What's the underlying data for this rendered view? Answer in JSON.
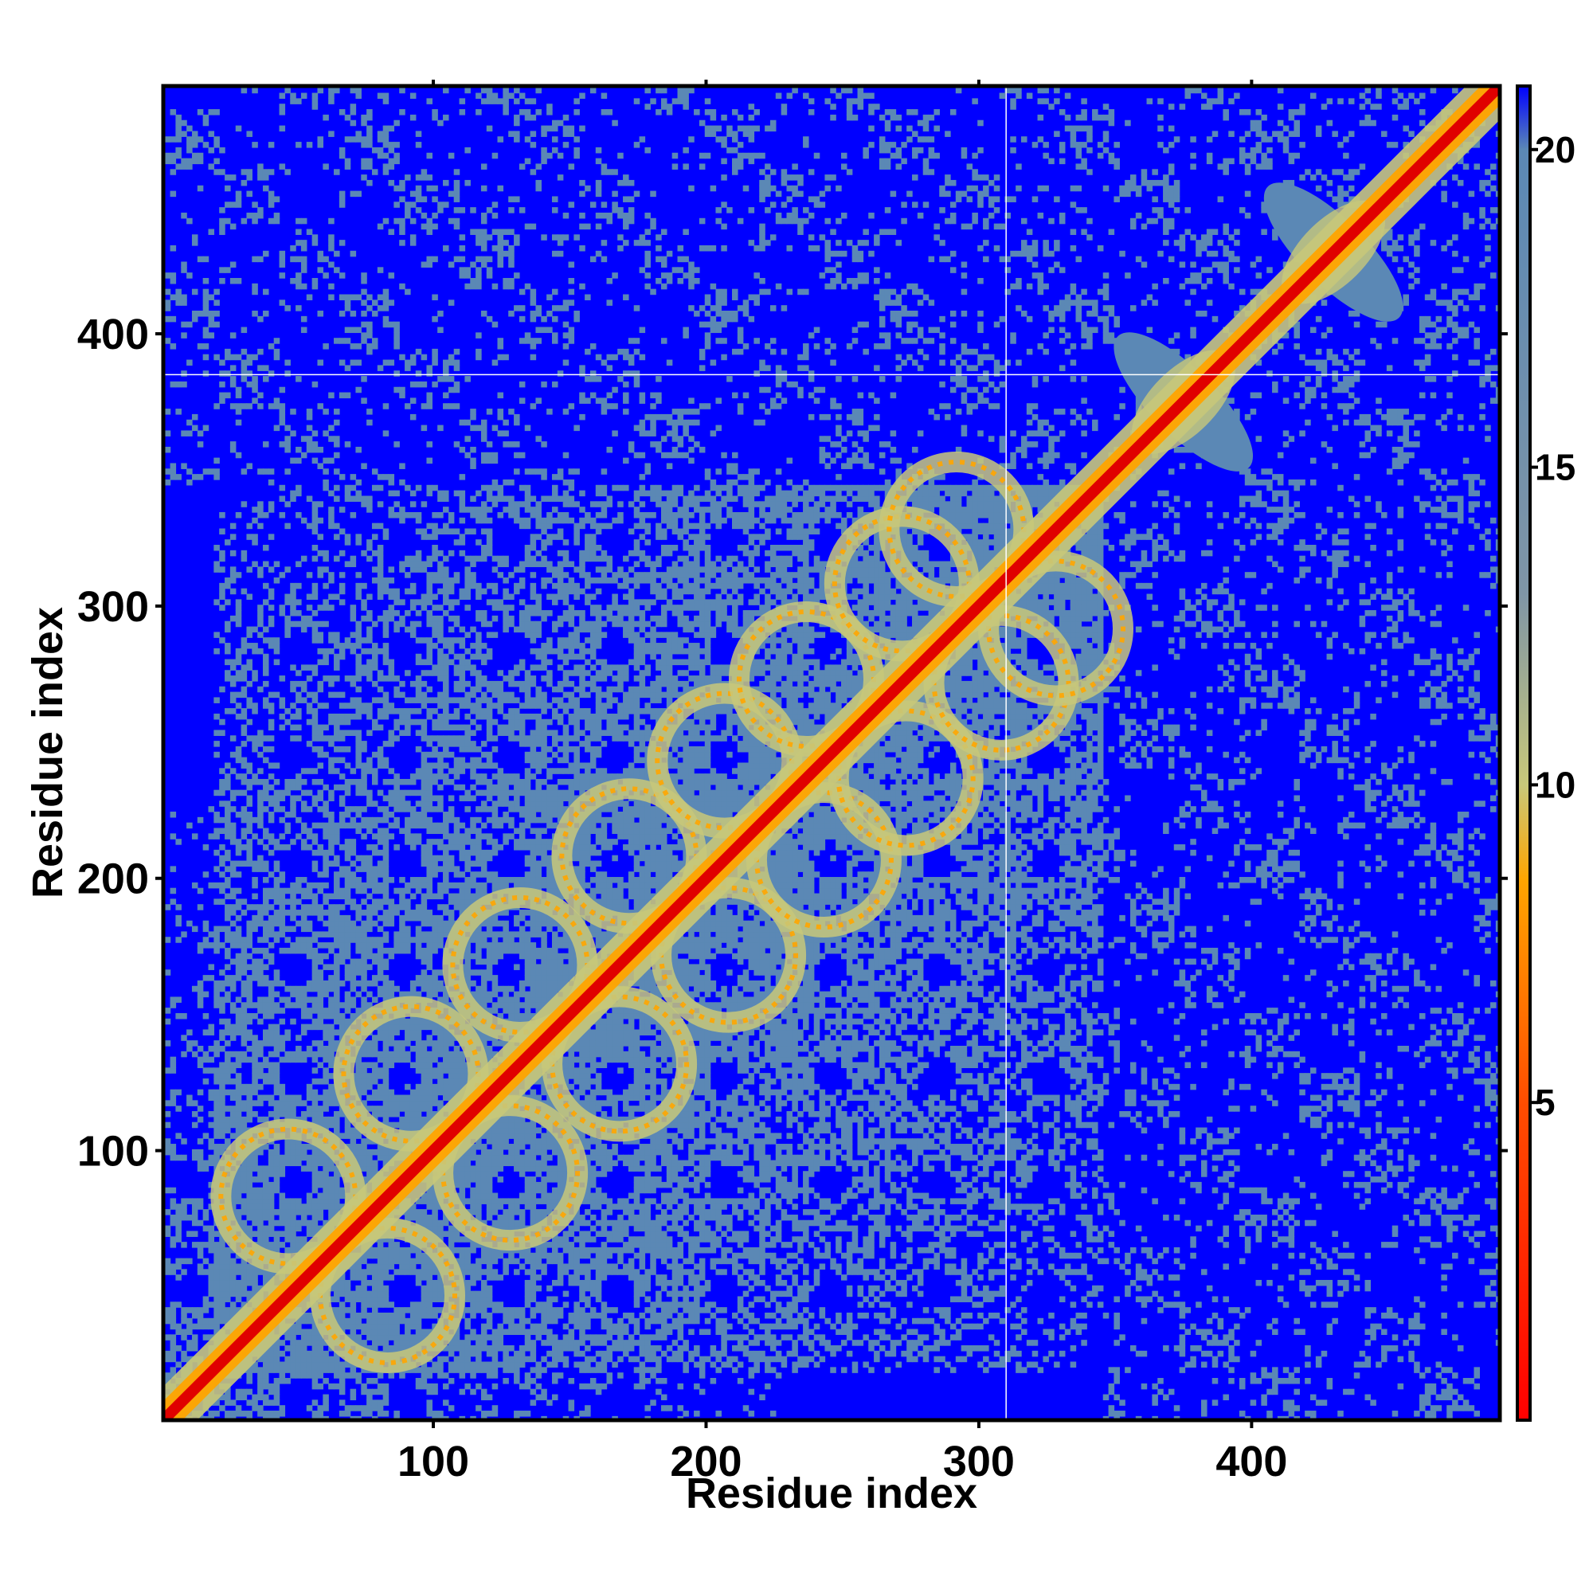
{
  "chart_data": {
    "type": "heatmap",
    "title": "",
    "xlabel": "Residue index",
    "ylabel": "Residue index",
    "xlim": [
      1,
      491
    ],
    "ylim": [
      1,
      491
    ],
    "x_ticks": [
      100,
      200,
      300,
      400
    ],
    "y_ticks": [
      100,
      200,
      300,
      400
    ],
    "colorbar": {
      "ticks": [
        5,
        10,
        15,
        20
      ],
      "range": [
        0,
        21
      ],
      "stops": [
        {
          "value": 0,
          "color": "#ff0000"
        },
        {
          "value": 5,
          "color": "#ff4d00"
        },
        {
          "value": 8.5,
          "color": "#ffa500"
        },
        {
          "value": 10,
          "color": "#c8c87a"
        },
        {
          "value": 13,
          "color": "#7f95a6"
        },
        {
          "value": 20,
          "color": "#5b88b5"
        },
        {
          "value": 21,
          "color": "#0000ff"
        }
      ]
    },
    "background_color": "#0000ff",
    "contact_color": "#5b88b5",
    "near_color": "#c8c87a",
    "close_color": "#ffa500",
    "diagonal_color": "#e00000",
    "grid_lines": {
      "x": 310,
      "y": 385
    },
    "matrix_description_note_free": true,
    "features": {
      "diagonal": {
        "from": 1,
        "to": 491
      },
      "main_contact_region": [
        1,
        345
      ],
      "helix_pair_loops_centers": [
        [
          65,
          65
        ],
        [
          110,
          110
        ],
        [
          150,
          150
        ],
        [
          190,
          190
        ],
        [
          225,
          225
        ],
        [
          255,
          255
        ],
        [
          290,
          290
        ],
        [
          310,
          310
        ]
      ],
      "secondary_clusters": [
        [
          375,
          375
        ],
        [
          430,
          430
        ]
      ]
    }
  }
}
